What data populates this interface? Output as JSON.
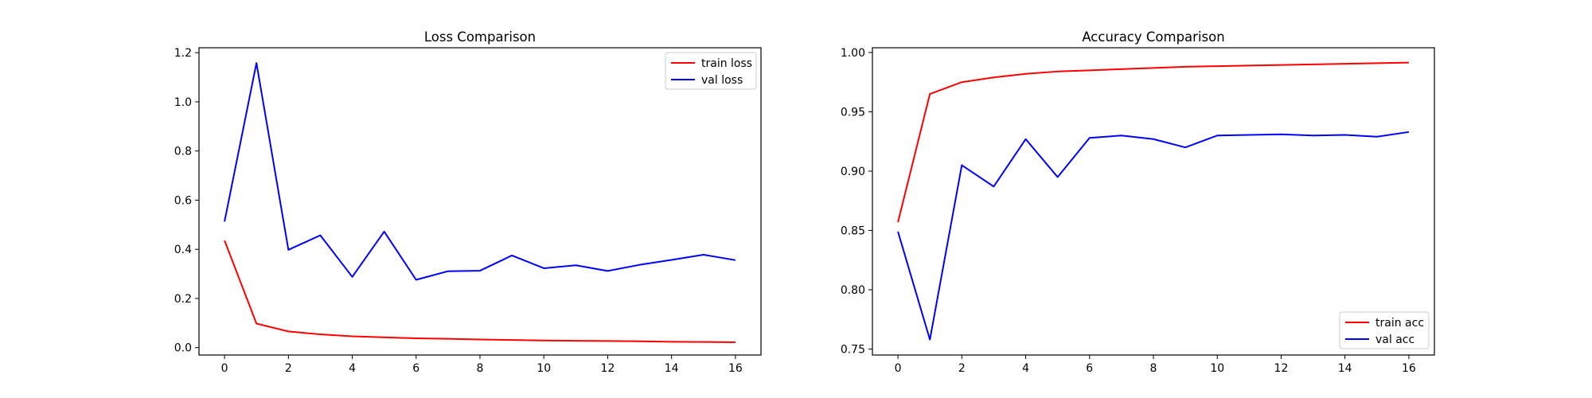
{
  "chart_data": [
    {
      "type": "line",
      "title": "Loss Comparison",
      "xlabel": "",
      "ylabel": "",
      "x": [
        0,
        1,
        2,
        3,
        4,
        5,
        6,
        7,
        8,
        9,
        10,
        11,
        12,
        13,
        14,
        15,
        16
      ],
      "xlim": [
        -0.8,
        16.8
      ],
      "ylim": [
        -0.03,
        1.22
      ],
      "xticks": [
        0,
        2,
        4,
        6,
        8,
        10,
        12,
        14,
        16
      ],
      "yticks": [
        0.0,
        0.2,
        0.4,
        0.6,
        0.8,
        1.0,
        1.2
      ],
      "ytick_labels": [
        "0.0",
        "0.2",
        "0.4",
        "0.6",
        "0.8",
        "1.0",
        "1.2"
      ],
      "legend_position": "upper-right",
      "grid": false,
      "series": [
        {
          "name": "train loss",
          "color": "#ff0000",
          "values": [
            0.436,
            0.098,
            0.066,
            0.054,
            0.046,
            0.042,
            0.038,
            0.036,
            0.033,
            0.031,
            0.029,
            0.028,
            0.027,
            0.026,
            0.024,
            0.023,
            0.022
          ]
        },
        {
          "name": "val loss",
          "color": "#0000ff",
          "values": [
            0.513,
            1.158,
            0.398,
            0.457,
            0.288,
            0.472,
            0.276,
            0.311,
            0.313,
            0.375,
            0.323,
            0.335,
            0.312,
            0.337,
            0.357,
            0.378,
            0.356
          ]
        }
      ]
    },
    {
      "type": "line",
      "title": "Accuracy Comparison",
      "xlabel": "",
      "ylabel": "",
      "x": [
        0,
        1,
        2,
        3,
        4,
        5,
        6,
        7,
        8,
        9,
        10,
        11,
        12,
        13,
        14,
        15,
        16
      ],
      "xlim": [
        -0.8,
        16.8
      ],
      "ylim": [
        0.745,
        1.004
      ],
      "xticks": [
        0,
        2,
        4,
        6,
        8,
        10,
        12,
        14,
        16
      ],
      "yticks": [
        0.75,
        0.8,
        0.85,
        0.9,
        0.95,
        1.0
      ],
      "ytick_labels": [
        "0.75",
        "0.80",
        "0.85",
        "0.90",
        "0.95",
        "1.00"
      ],
      "legend_position": "lower-right",
      "grid": false,
      "series": [
        {
          "name": "train acc",
          "color": "#ff0000",
          "values": [
            0.857,
            0.965,
            0.975,
            0.979,
            0.982,
            0.984,
            0.985,
            0.986,
            0.987,
            0.988,
            0.9885,
            0.989,
            0.9895,
            0.99,
            0.9905,
            0.991,
            0.9915
          ]
        },
        {
          "name": "val acc",
          "color": "#0000ff",
          "values": [
            0.849,
            0.758,
            0.905,
            0.887,
            0.927,
            0.895,
            0.928,
            0.93,
            0.927,
            0.92,
            0.93,
            0.9305,
            0.931,
            0.93,
            0.9305,
            0.929,
            0.933
          ]
        }
      ]
    }
  ]
}
